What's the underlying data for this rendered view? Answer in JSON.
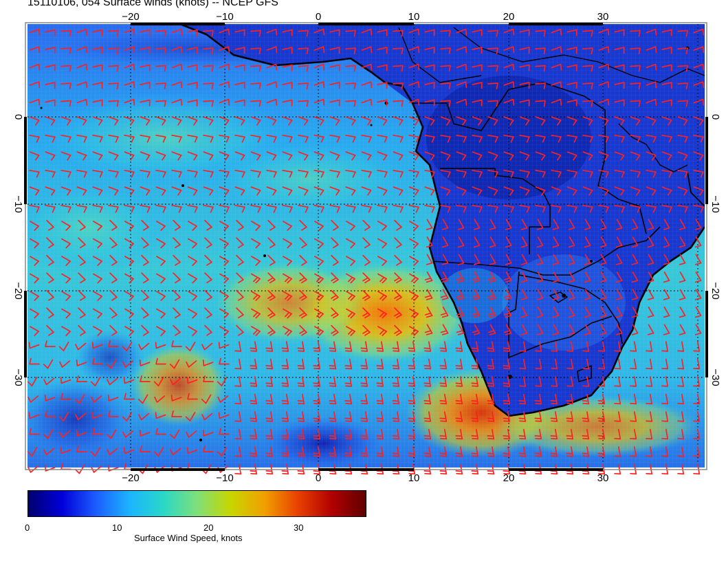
{
  "title": "15110106, 054 Surface winds (knots) -- NCEP GFS",
  "map": {
    "lon_ticks": [
      "−20",
      "−10",
      "0",
      "10",
      "20",
      "30"
    ],
    "lat_ticks": [
      "0",
      "−10",
      "−20",
      "−30"
    ],
    "lon_range": [
      -30,
      41
    ],
    "lat_range": [
      -40,
      11
    ],
    "gridlines": "dotted",
    "barb_color": "#ff2020",
    "coast_color": "#000000"
  },
  "colorbar": {
    "label": "Surface Wind Speed, knots",
    "ticks": [
      "0",
      "10",
      "20",
      "30"
    ],
    "range": [
      0,
      37
    ],
    "colors": [
      "#00006e",
      "#0000d8",
      "#1c5cff",
      "#1cb4ff",
      "#29d8c8",
      "#7de07a",
      "#c8d600",
      "#f0a000",
      "#e84000",
      "#b00000",
      "#600000"
    ]
  }
}
